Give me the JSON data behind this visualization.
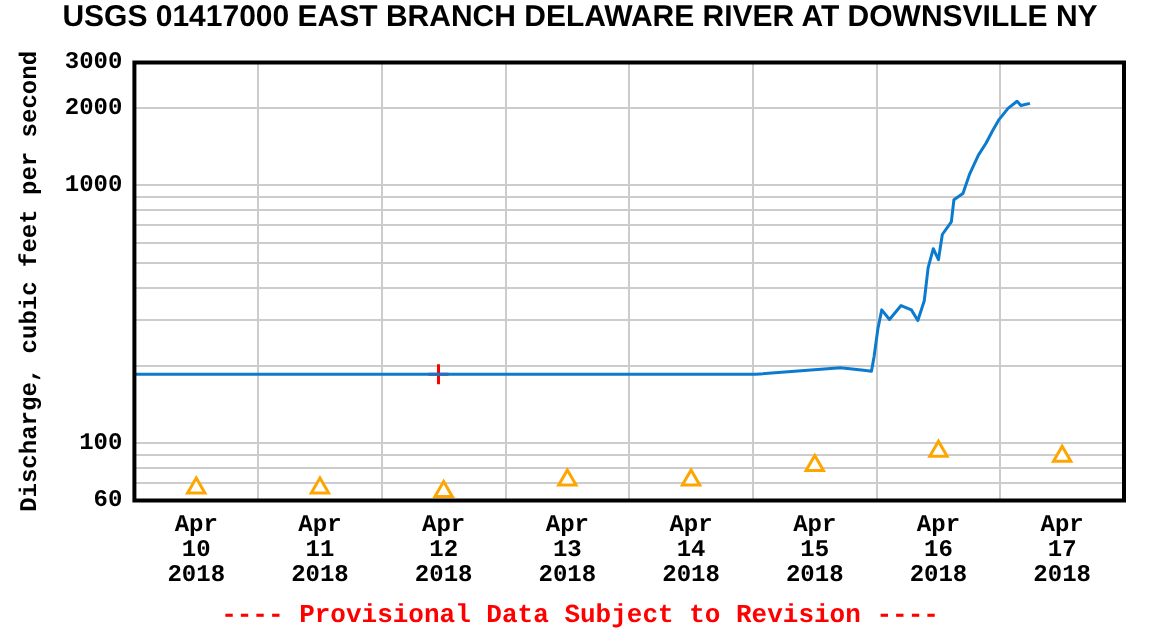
{
  "chart_data": {
    "type": "line",
    "title": "USGS 01417000 EAST BRANCH DELAWARE RIVER AT DOWNSVILLE NY",
    "ylabel": "Discharge, cubic feet per second",
    "annotations": [
      "---- Provisional Data Subject to Revision ----"
    ],
    "log": "y",
    "grid": true,
    "legend": false,
    "xlim": [
      "2018-04-10T00:00",
      "2018-04-18T00:00"
    ],
    "xticks": [
      {
        "value": "2018-04-10T00:00",
        "label": null
      },
      {
        "value": "2018-04-10T12:00",
        "label": "Apr\n10\n2018"
      },
      {
        "value": "2018-04-11T00:00",
        "label": null
      },
      {
        "value": "2018-04-11T12:00",
        "label": "Apr\n11\n2018"
      },
      {
        "value": "2018-04-12T00:00",
        "label": null
      },
      {
        "value": "2018-04-12T12:00",
        "label": "Apr\n12\n2018"
      },
      {
        "value": "2018-04-13T00:00",
        "label": null
      },
      {
        "value": "2018-04-13T12:00",
        "label": "Apr\n13\n2018"
      },
      {
        "value": "2018-04-14T00:00",
        "label": null
      },
      {
        "value": "2018-04-14T12:00",
        "label": "Apr\n14\n2018"
      },
      {
        "value": "2018-04-15T00:00",
        "label": null
      },
      {
        "value": "2018-04-15T12:00",
        "label": "Apr\n15\n2018"
      },
      {
        "value": "2018-04-16T00:00",
        "label": null
      },
      {
        "value": "2018-04-16T12:00",
        "label": "Apr\n16\n2018"
      },
      {
        "value": "2018-04-17T00:00",
        "label": null
      },
      {
        "value": "2018-04-17T12:00",
        "label": "Apr\n17\n2018"
      },
      {
        "value": "2018-04-18T00:00",
        "label": null
      }
    ],
    "ylim": [
      60,
      3000
    ],
    "yticks": [
      60,
      {
        "value": 70,
        "label": null
      },
      {
        "value": 80,
        "label": null
      },
      {
        "value": 90,
        "label": null
      },
      100,
      {
        "value": 200,
        "label": null
      },
      {
        "value": 300,
        "label": null
      },
      {
        "value": 400,
        "label": null
      },
      {
        "value": 500,
        "label": null
      },
      {
        "value": 600,
        "label": null
      },
      {
        "value": 700,
        "label": null
      },
      {
        "value": 800,
        "label": null
      },
      {
        "value": 900,
        "label": null
      },
      1000,
      2000,
      3000
    ],
    "series": [
      {
        "marker": "none",
        "color": "#0b7bd0",
        "x": [
          "2018-04-10T00:00",
          "2018-04-15T00:30",
          "2018-04-15T17:00",
          "2018-04-15T21:30",
          "2018-04-15T23:00",
          "2018-04-15T23:30",
          "2018-04-16T00:15",
          "2018-04-16T01:00",
          "2018-04-16T02:30",
          "2018-04-16T04:45",
          "2018-04-16T06:45",
          "2018-04-16T08:00",
          "2018-04-16T09:15",
          "2018-04-16T10:00",
          "2018-04-16T11:00",
          "2018-04-16T12:00",
          "2018-04-16T12:45",
          "2018-04-16T14:30",
          "2018-04-16T15:00",
          "2018-04-16T16:45",
          "2018-04-16T18:00",
          "2018-04-16T19:45",
          "2018-04-16T21:15",
          "2018-04-16T22:30",
          "2018-04-16T23:45",
          "2018-04-17T01:30",
          "2018-04-17T03:15",
          "2018-04-17T04:00",
          "2018-04-17T05:45"
        ],
        "values": [
          185,
          185,
          196,
          192,
          190,
          216,
          278,
          329,
          302,
          342,
          329,
          299,
          357,
          480,
          568,
          515,
          645,
          722,
          880,
          930,
          1100,
          1310,
          1460,
          1630,
          1800,
          1990,
          2120,
          2040,
          2080
        ]
      },
      {
        "type": "scatter",
        "marker": "cross",
        "color": "#ff0000",
        "x": [
          "2018-04-12T11:00"
        ],
        "values": [
          185
        ]
      },
      {
        "type": "scatter",
        "marker": "triangle",
        "color": "#ffa500",
        "x": [
          "2018-04-10T12:00",
          "2018-04-11T12:00",
          "2018-04-12T12:00",
          "2018-04-13T12:00",
          "2018-04-14T12:00",
          "2018-04-15T12:00",
          "2018-04-16T12:00",
          "2018-04-17T12:00"
        ],
        "values": [
          67,
          67,
          65,
          72,
          72,
          82,
          93,
          89
        ]
      }
    ]
  }
}
